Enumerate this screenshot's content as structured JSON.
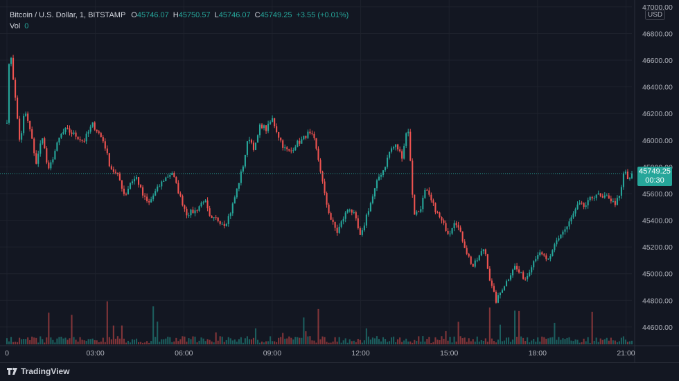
{
  "legend": {
    "title": "Bitcoin / U.S. Dollar, 1, BITSTAMP",
    "open_label": "O",
    "open": "45746.07",
    "high_label": "H",
    "high": "45750.57",
    "low_label": "L",
    "low": "45746.07",
    "close_label": "C",
    "close": "45749.25",
    "change": "+3.55 (+0.01%)",
    "vol_label": "Vol",
    "vol_value": "0"
  },
  "currency": "USD",
  "price_tag": {
    "price": "45749.25",
    "countdown": "00:30"
  },
  "brand": {
    "name": "TradingView"
  },
  "colors": {
    "background": "#131722",
    "grid": "#1e222d",
    "up": "#26a69a",
    "down": "#ef5350",
    "text": "#b2b5be"
  },
  "chart_data": {
    "type": "candlestick",
    "x_tick_labels": [
      "0",
      "03:00",
      "06:00",
      "09:00",
      "12:00",
      "15:00",
      "18:00",
      "21:00"
    ],
    "y_tick_labels": [
      "47000.00",
      "46800.00",
      "46600.00",
      "46400.00",
      "46200.00",
      "46000.00",
      "45800.00",
      "45600.00",
      "45400.00",
      "45200.00",
      "45000.00",
      "44800.00",
      "44600.00"
    ],
    "y_ticks": [
      47000,
      46800,
      46600,
      46400,
      46200,
      46000,
      45800,
      45600,
      45400,
      45200,
      45000,
      44800,
      44600
    ],
    "ylim": [
      44470,
      47020
    ],
    "x_ticks_hours": [
      0,
      3,
      6,
      9,
      12,
      15,
      18,
      21
    ],
    "xlim_hours": [
      0,
      21.2
    ],
    "last_price": 45749.25,
    "series": [
      {
        "name": "",
        "close_path_anchors": [
          [
            0.0,
            46150
          ],
          [
            0.1,
            46720
          ],
          [
            0.25,
            46380
          ],
          [
            0.45,
            45960
          ],
          [
            0.6,
            46230
          ],
          [
            0.8,
            46060
          ],
          [
            1.0,
            45820
          ],
          [
            1.2,
            46040
          ],
          [
            1.4,
            45760
          ],
          [
            1.6,
            45900
          ],
          [
            1.8,
            46030
          ],
          [
            2.0,
            46080
          ],
          [
            2.3,
            46040
          ],
          [
            2.6,
            45990
          ],
          [
            2.9,
            46120
          ],
          [
            3.1,
            46060
          ],
          [
            3.3,
            45980
          ],
          [
            3.5,
            45800
          ],
          [
            3.8,
            45720
          ],
          [
            4.0,
            45580
          ],
          [
            4.2,
            45690
          ],
          [
            4.4,
            45720
          ],
          [
            4.6,
            45590
          ],
          [
            4.8,
            45520
          ],
          [
            5.0,
            45600
          ],
          [
            5.3,
            45700
          ],
          [
            5.6,
            45760
          ],
          [
            5.9,
            45560
          ],
          [
            6.1,
            45450
          ],
          [
            6.4,
            45470
          ],
          [
            6.7,
            45560
          ],
          [
            6.9,
            45400
          ],
          [
            7.1,
            45410
          ],
          [
            7.4,
            45370
          ],
          [
            7.6,
            45470
          ],
          [
            7.8,
            45630
          ],
          [
            8.0,
            45800
          ],
          [
            8.2,
            46030
          ],
          [
            8.4,
            45930
          ],
          [
            8.6,
            46120
          ],
          [
            8.8,
            46080
          ],
          [
            9.0,
            46160
          ],
          [
            9.2,
            46040
          ],
          [
            9.4,
            45940
          ],
          [
            9.6,
            45910
          ],
          [
            9.8,
            45970
          ],
          [
            10.0,
            46000
          ],
          [
            10.2,
            46050
          ],
          [
            10.4,
            46020
          ],
          [
            10.6,
            45820
          ],
          [
            10.8,
            45560
          ],
          [
            11.0,
            45400
          ],
          [
            11.2,
            45310
          ],
          [
            11.4,
            45410
          ],
          [
            11.6,
            45500
          ],
          [
            11.8,
            45430
          ],
          [
            12.0,
            45260
          ],
          [
            12.2,
            45440
          ],
          [
            12.4,
            45570
          ],
          [
            12.6,
            45720
          ],
          [
            12.8,
            45790
          ],
          [
            13.0,
            45930
          ],
          [
            13.2,
            45960
          ],
          [
            13.4,
            45880
          ],
          [
            13.6,
            46120
          ],
          [
            13.8,
            45450
          ],
          [
            14.0,
            45470
          ],
          [
            14.2,
            45630
          ],
          [
            14.4,
            45540
          ],
          [
            14.6,
            45450
          ],
          [
            14.8,
            45370
          ],
          [
            15.0,
            45300
          ],
          [
            15.2,
            45410
          ],
          [
            15.4,
            45290
          ],
          [
            15.6,
            45160
          ],
          [
            15.8,
            45050
          ],
          [
            16.0,
            45120
          ],
          [
            16.2,
            45200
          ],
          [
            16.4,
            44930
          ],
          [
            16.6,
            44790
          ],
          [
            16.8,
            44890
          ],
          [
            17.0,
            44960
          ],
          [
            17.2,
            45060
          ],
          [
            17.4,
            45000
          ],
          [
            17.6,
            44960
          ],
          [
            17.8,
            45070
          ],
          [
            18.0,
            45150
          ],
          [
            18.2,
            45130
          ],
          [
            18.4,
            45090
          ],
          [
            18.6,
            45230
          ],
          [
            18.8,
            45300
          ],
          [
            19.0,
            45350
          ],
          [
            19.2,
            45440
          ],
          [
            19.4,
            45520
          ],
          [
            19.6,
            45500
          ],
          [
            19.8,
            45560
          ],
          [
            20.0,
            45600
          ],
          [
            20.2,
            45560
          ],
          [
            20.4,
            45580
          ],
          [
            20.6,
            45520
          ],
          [
            20.8,
            45580
          ],
          [
            20.95,
            45790
          ],
          [
            21.1,
            45680
          ],
          [
            21.2,
            45749
          ]
        ]
      }
    ]
  }
}
